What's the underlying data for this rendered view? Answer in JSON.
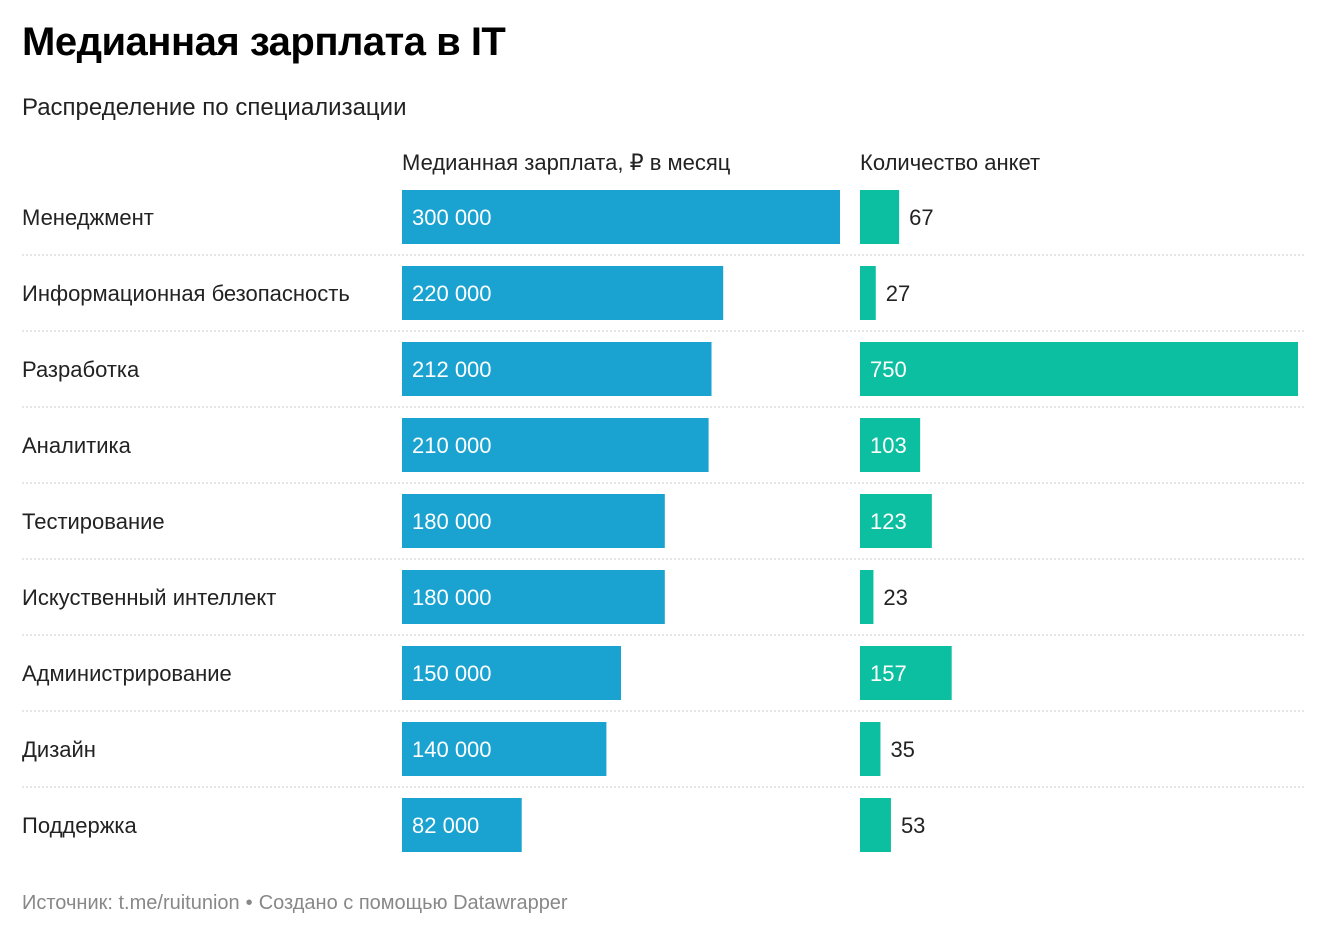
{
  "title": "Медианная зарплата в IT",
  "subtitle": "Распределение по специализации",
  "column_headers": {
    "salary": "Медианная зарплата, ₽ в месяц",
    "count": "Количество анкет"
  },
  "footer": {
    "source": "Источник: t.me/ruitunion",
    "separator": "•",
    "credit": "Создано с помощью Datawrapper"
  },
  "colors": {
    "salary_bar": "#1aa3d1",
    "count_bar": "#0dbfa1",
    "row_divider": "#cccccc",
    "label_on_bar": "#ffffff",
    "label_off_bar": "#222222"
  },
  "chart_data": {
    "type": "bar",
    "orientation": "horizontal",
    "categories": [
      "Менеджмент",
      "Информационная безопасность",
      "Разработка",
      "Аналитика",
      "Тестирование",
      "Искуственный интеллект",
      "Администрирование",
      "Дизайн",
      "Поддержка"
    ],
    "series": [
      {
        "name": "Медианная зарплата, ₽ в месяц",
        "values": [
          300000,
          220000,
          212000,
          210000,
          180000,
          180000,
          150000,
          140000,
          82000
        ],
        "labels": [
          "300 000",
          "220 000",
          "212 000",
          "210 000",
          "180 000",
          "180 000",
          "150 000",
          "140 000",
          "82 000"
        ],
        "xlim": [
          0,
          300000
        ]
      },
      {
        "name": "Количество анкет",
        "values": [
          67,
          27,
          750,
          103,
          123,
          23,
          157,
          35,
          53
        ],
        "labels": [
          "67",
          "27",
          "750",
          "103",
          "123",
          "23",
          "157",
          "35",
          "53"
        ],
        "xlim": [
          0,
          750
        ]
      }
    ],
    "grid": false,
    "legend": "none"
  }
}
